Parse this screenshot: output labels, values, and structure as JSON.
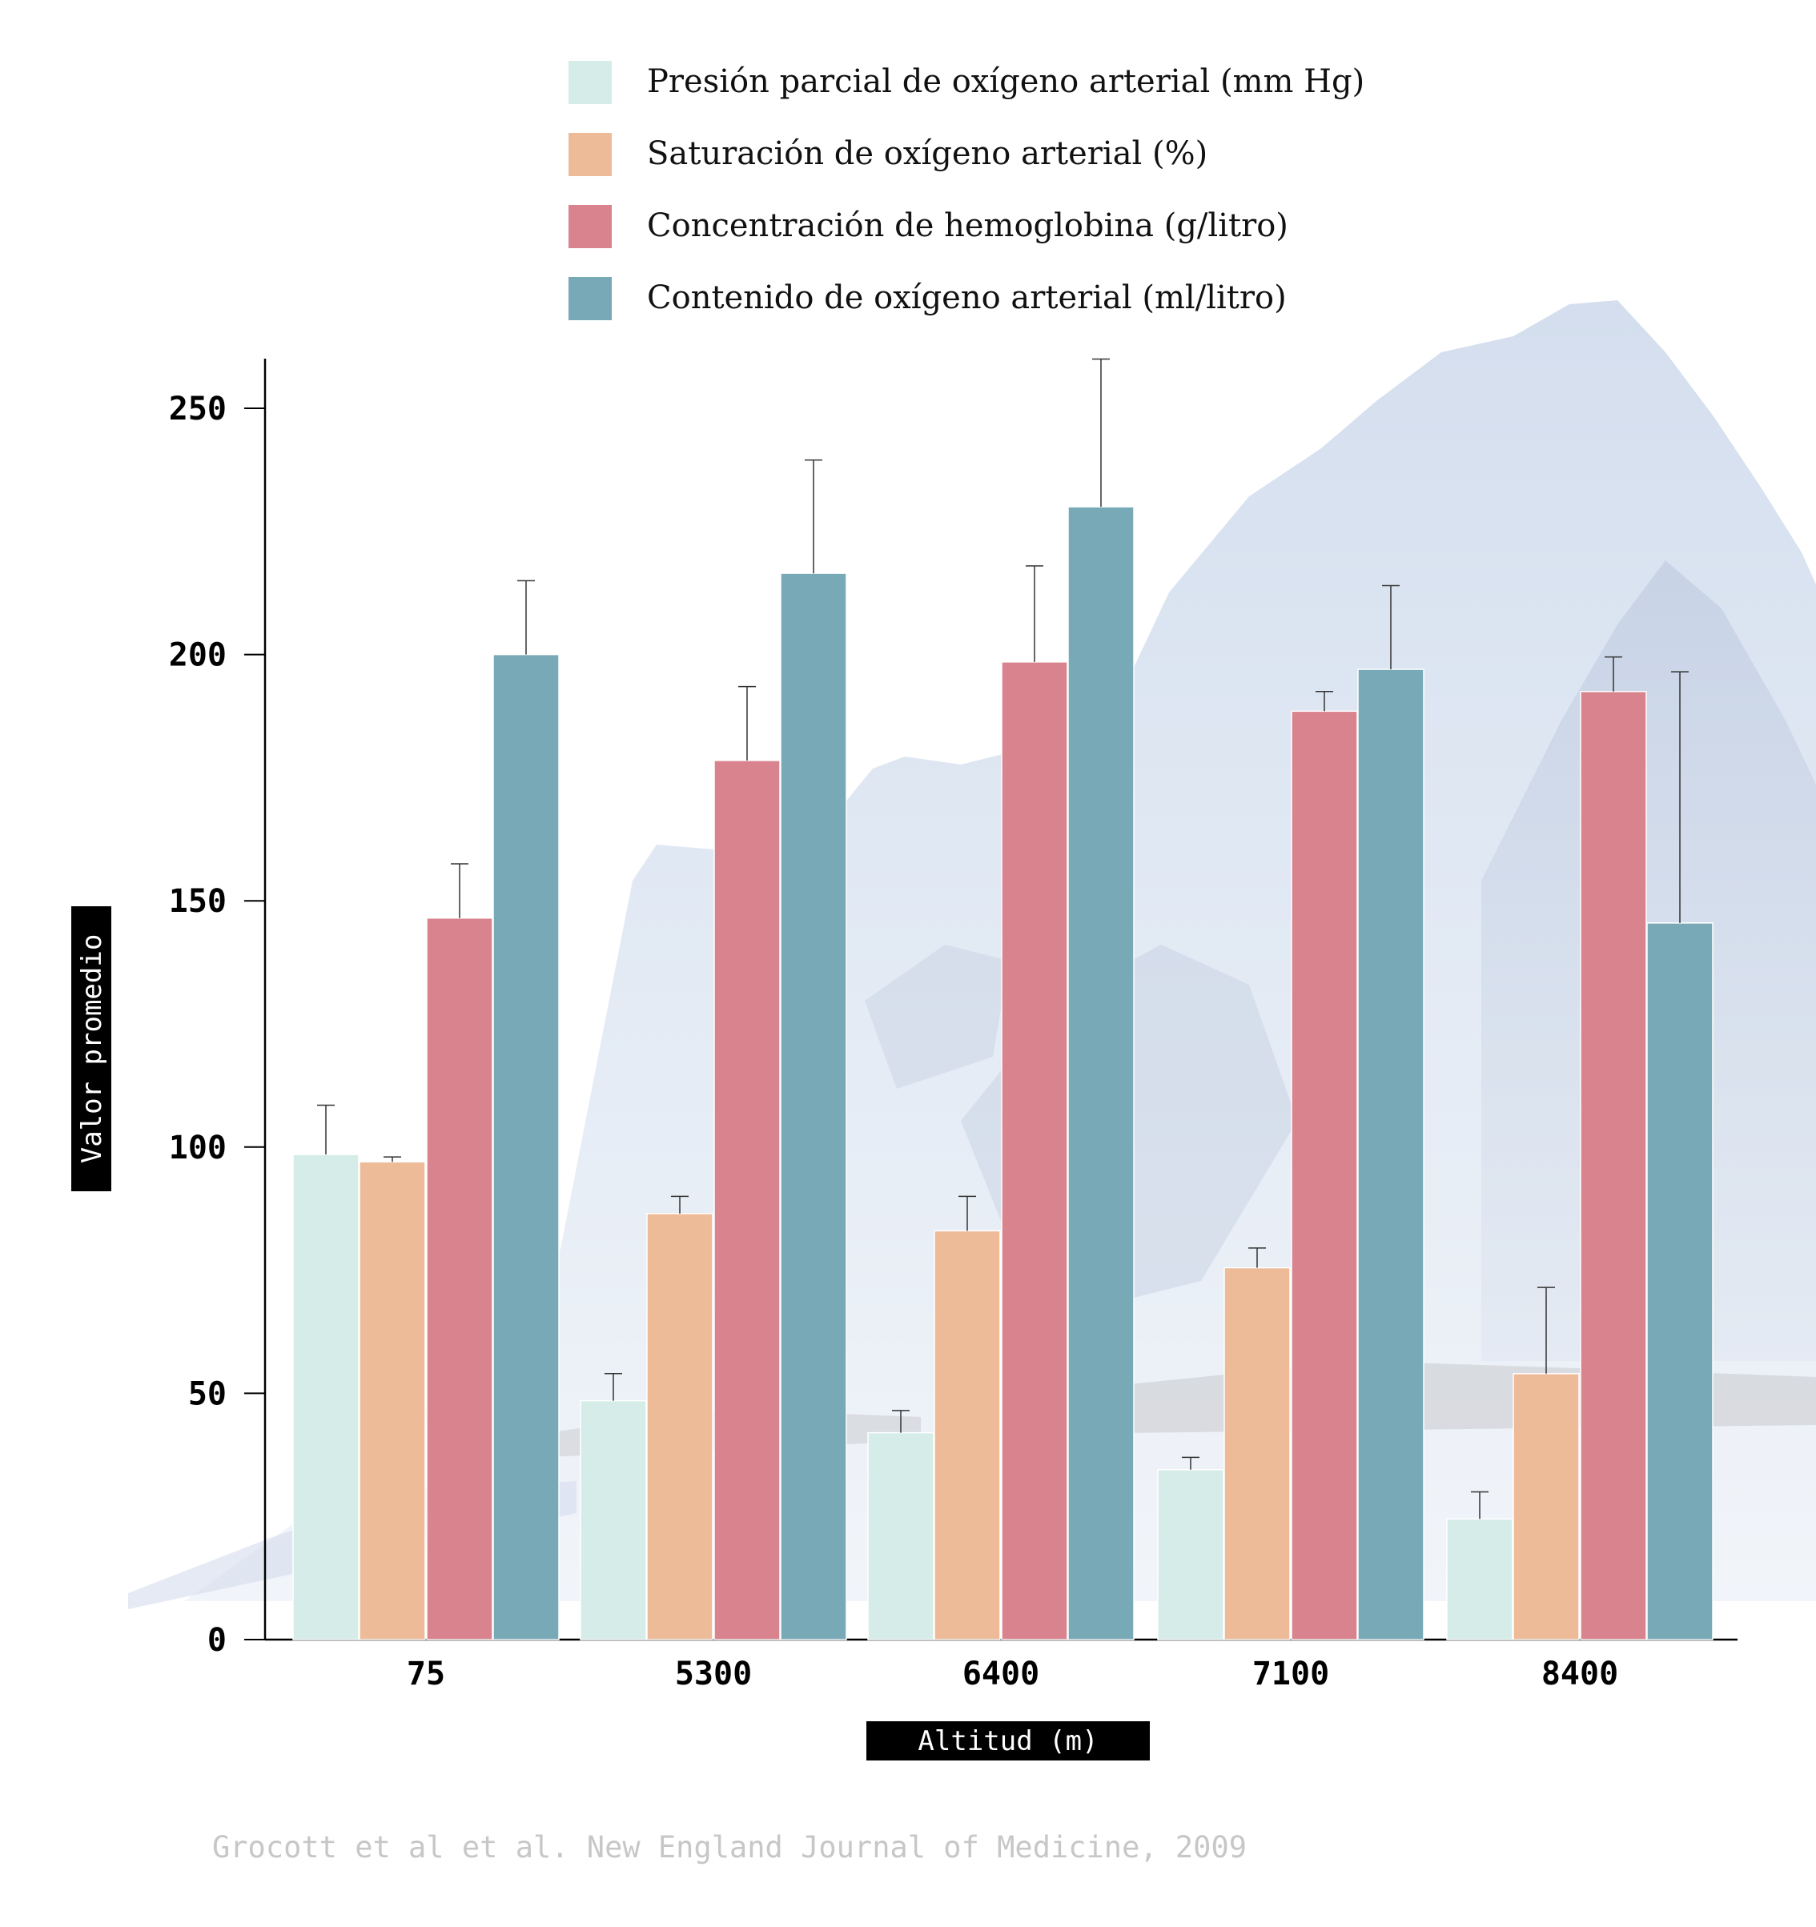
{
  "chart_data": {
    "type": "bar",
    "categories": [
      "75",
      "5300",
      "6400",
      "7100",
      "8400"
    ],
    "series": [
      {
        "name": "Presión parcial de oxígeno arterial (mm Hg)",
        "color": "#d5ece8",
        "values": [
          98.5,
          48.5,
          42,
          34.5,
          24.5
        ],
        "errors": [
          10,
          5.5,
          4.5,
          2.5,
          5.5
        ]
      },
      {
        "name": "Saturación de oxígeno arterial (%)",
        "color": "#eebb99",
        "values": [
          97,
          86.5,
          83,
          75.5,
          54
        ],
        "errors": [
          1,
          3.5,
          7,
          4,
          17.5
        ]
      },
      {
        "name": "Concentración de hemoglobina (g/litro)",
        "color": "#d8838e",
        "values": [
          146.5,
          178.5,
          198.5,
          188.5,
          192.5
        ],
        "errors": [
          11,
          15,
          19.5,
          4,
          7
        ]
      },
      {
        "name": "Contenido de oxígeno arterial (ml/litro)",
        "color": "#77a9b7",
        "values": [
          200,
          216.5,
          230,
          197,
          145.5
        ],
        "errors": [
          15,
          23,
          30,
          17,
          51
        ]
      }
    ],
    "xlabel": "Altitud (m)",
    "ylabel": "Valor promedio",
    "yticks": [
      0,
      50,
      100,
      150,
      200,
      250
    ],
    "ylim": [
      0,
      260
    ],
    "legend_position": "top",
    "source": "Grocott et al et al. New England Journal of Medicine, 2009"
  }
}
